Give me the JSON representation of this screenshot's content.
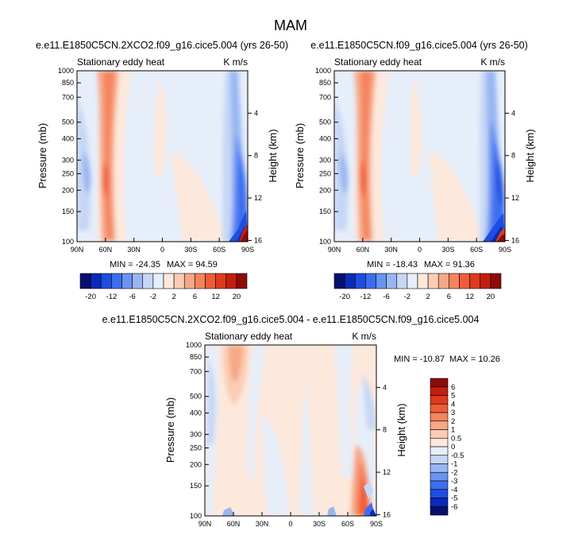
{
  "figure_title": "MAM",
  "colors": {
    "frame": "#000000",
    "bg": "#ffffff"
  },
  "chart_data": [
    {
      "type": "heatmap",
      "id": "p1",
      "title": "e.e11.E1850C5CN.2XCO2.f09_g16.cice5.004 (yrs 26-50)",
      "left_string": "Stationary eddy heat",
      "right_string": "K m/s",
      "xlabel": "",
      "ylabel": "Pressure (mb)",
      "y2label": "Height (km)",
      "x_ticks": [
        "90N",
        "60N",
        "30N",
        "0",
        "30S",
        "60S",
        "90S"
      ],
      "y_ticks": [
        100,
        150,
        200,
        250,
        300,
        400,
        500,
        700,
        850,
        1000
      ],
      "y2_ticks": [
        4,
        8,
        12,
        16
      ],
      "ylim": [
        1000,
        100
      ],
      "min_label": "MIN = -24.35",
      "max_label": "MAX = 94.59",
      "colorbar": {
        "orientation": "horizontal",
        "labels": [
          "-20",
          "-12",
          "-6",
          "-2",
          "2",
          "6",
          "12",
          "20"
        ],
        "levels": [
          -20,
          -16,
          -12,
          -8,
          -6,
          -4,
          -2,
          -1,
          1,
          2,
          4,
          6,
          8,
          12,
          16,
          20
        ]
      }
    },
    {
      "type": "heatmap",
      "id": "p2",
      "title": "e.e11.E1850C5CN.f09_g16.cice5.004 (yrs 26-50)",
      "left_string": "Stationary eddy heat",
      "right_string": "K m/s",
      "xlabel": "",
      "ylabel": "Pressure (mb)",
      "y2label": "Height (km)",
      "x_ticks": [
        "90N",
        "60N",
        "30N",
        "0",
        "30S",
        "60S",
        "90S"
      ],
      "y_ticks": [
        100,
        150,
        200,
        250,
        300,
        400,
        500,
        700,
        850,
        1000
      ],
      "y2_ticks": [
        4,
        8,
        12,
        16
      ],
      "ylim": [
        1000,
        100
      ],
      "min_label": "MIN = -18.43",
      "max_label": "MAX = 91.36",
      "colorbar": {
        "orientation": "horizontal",
        "labels": [
          "-20",
          "-12",
          "-6",
          "-2",
          "2",
          "6",
          "12",
          "20"
        ],
        "levels": [
          -20,
          -16,
          -12,
          -8,
          -6,
          -4,
          -2,
          -1,
          1,
          2,
          4,
          6,
          8,
          12,
          16,
          20
        ]
      }
    },
    {
      "type": "heatmap",
      "id": "p3",
      "title": "e.e11.E1850C5CN.2XCO2.f09_g16.cice5.004 - e.e11.E1850C5CN.f09_g16.cice5.004",
      "left_string": "Stationary eddy heat",
      "right_string": "K m/s",
      "xlabel": "",
      "ylabel": "Pressure (mb)",
      "y2label": "Height (km)",
      "x_ticks": [
        "90N",
        "60N",
        "30N",
        "0",
        "30S",
        "60S",
        "90S"
      ],
      "y_ticks": [
        100,
        150,
        200,
        250,
        300,
        400,
        500,
        700,
        850,
        1000
      ],
      "y2_ticks": [
        4,
        8,
        12,
        16
      ],
      "ylim": [
        1000,
        100
      ],
      "min_label": "MIN = -10.87",
      "max_label": "MAX =  10.26",
      "colorbar": {
        "orientation": "vertical",
        "labels": [
          "6",
          "5",
          "4",
          "3",
          "2",
          "1",
          "0.5",
          "0",
          "-0.5",
          "-1",
          "-2",
          "-3",
          "-4",
          "-5",
          "-6"
        ],
        "levels": [
          -6,
          -5,
          -4,
          -3,
          -2,
          -1,
          -0.5,
          0,
          0.5,
          1,
          2,
          3,
          4,
          5,
          6
        ]
      }
    }
  ],
  "palette": [
    "#08106e",
    "#0a2ab8",
    "#1d4ee0",
    "#3d6ef0",
    "#6a93f2",
    "#98b6f2",
    "#c6d7f5",
    "#e6eefa",
    "#fde8dc",
    "#fbcdb4",
    "#f7a886",
    "#f4845e",
    "#ef5d38",
    "#e03a1c",
    "#c2200f",
    "#8e0b08"
  ]
}
